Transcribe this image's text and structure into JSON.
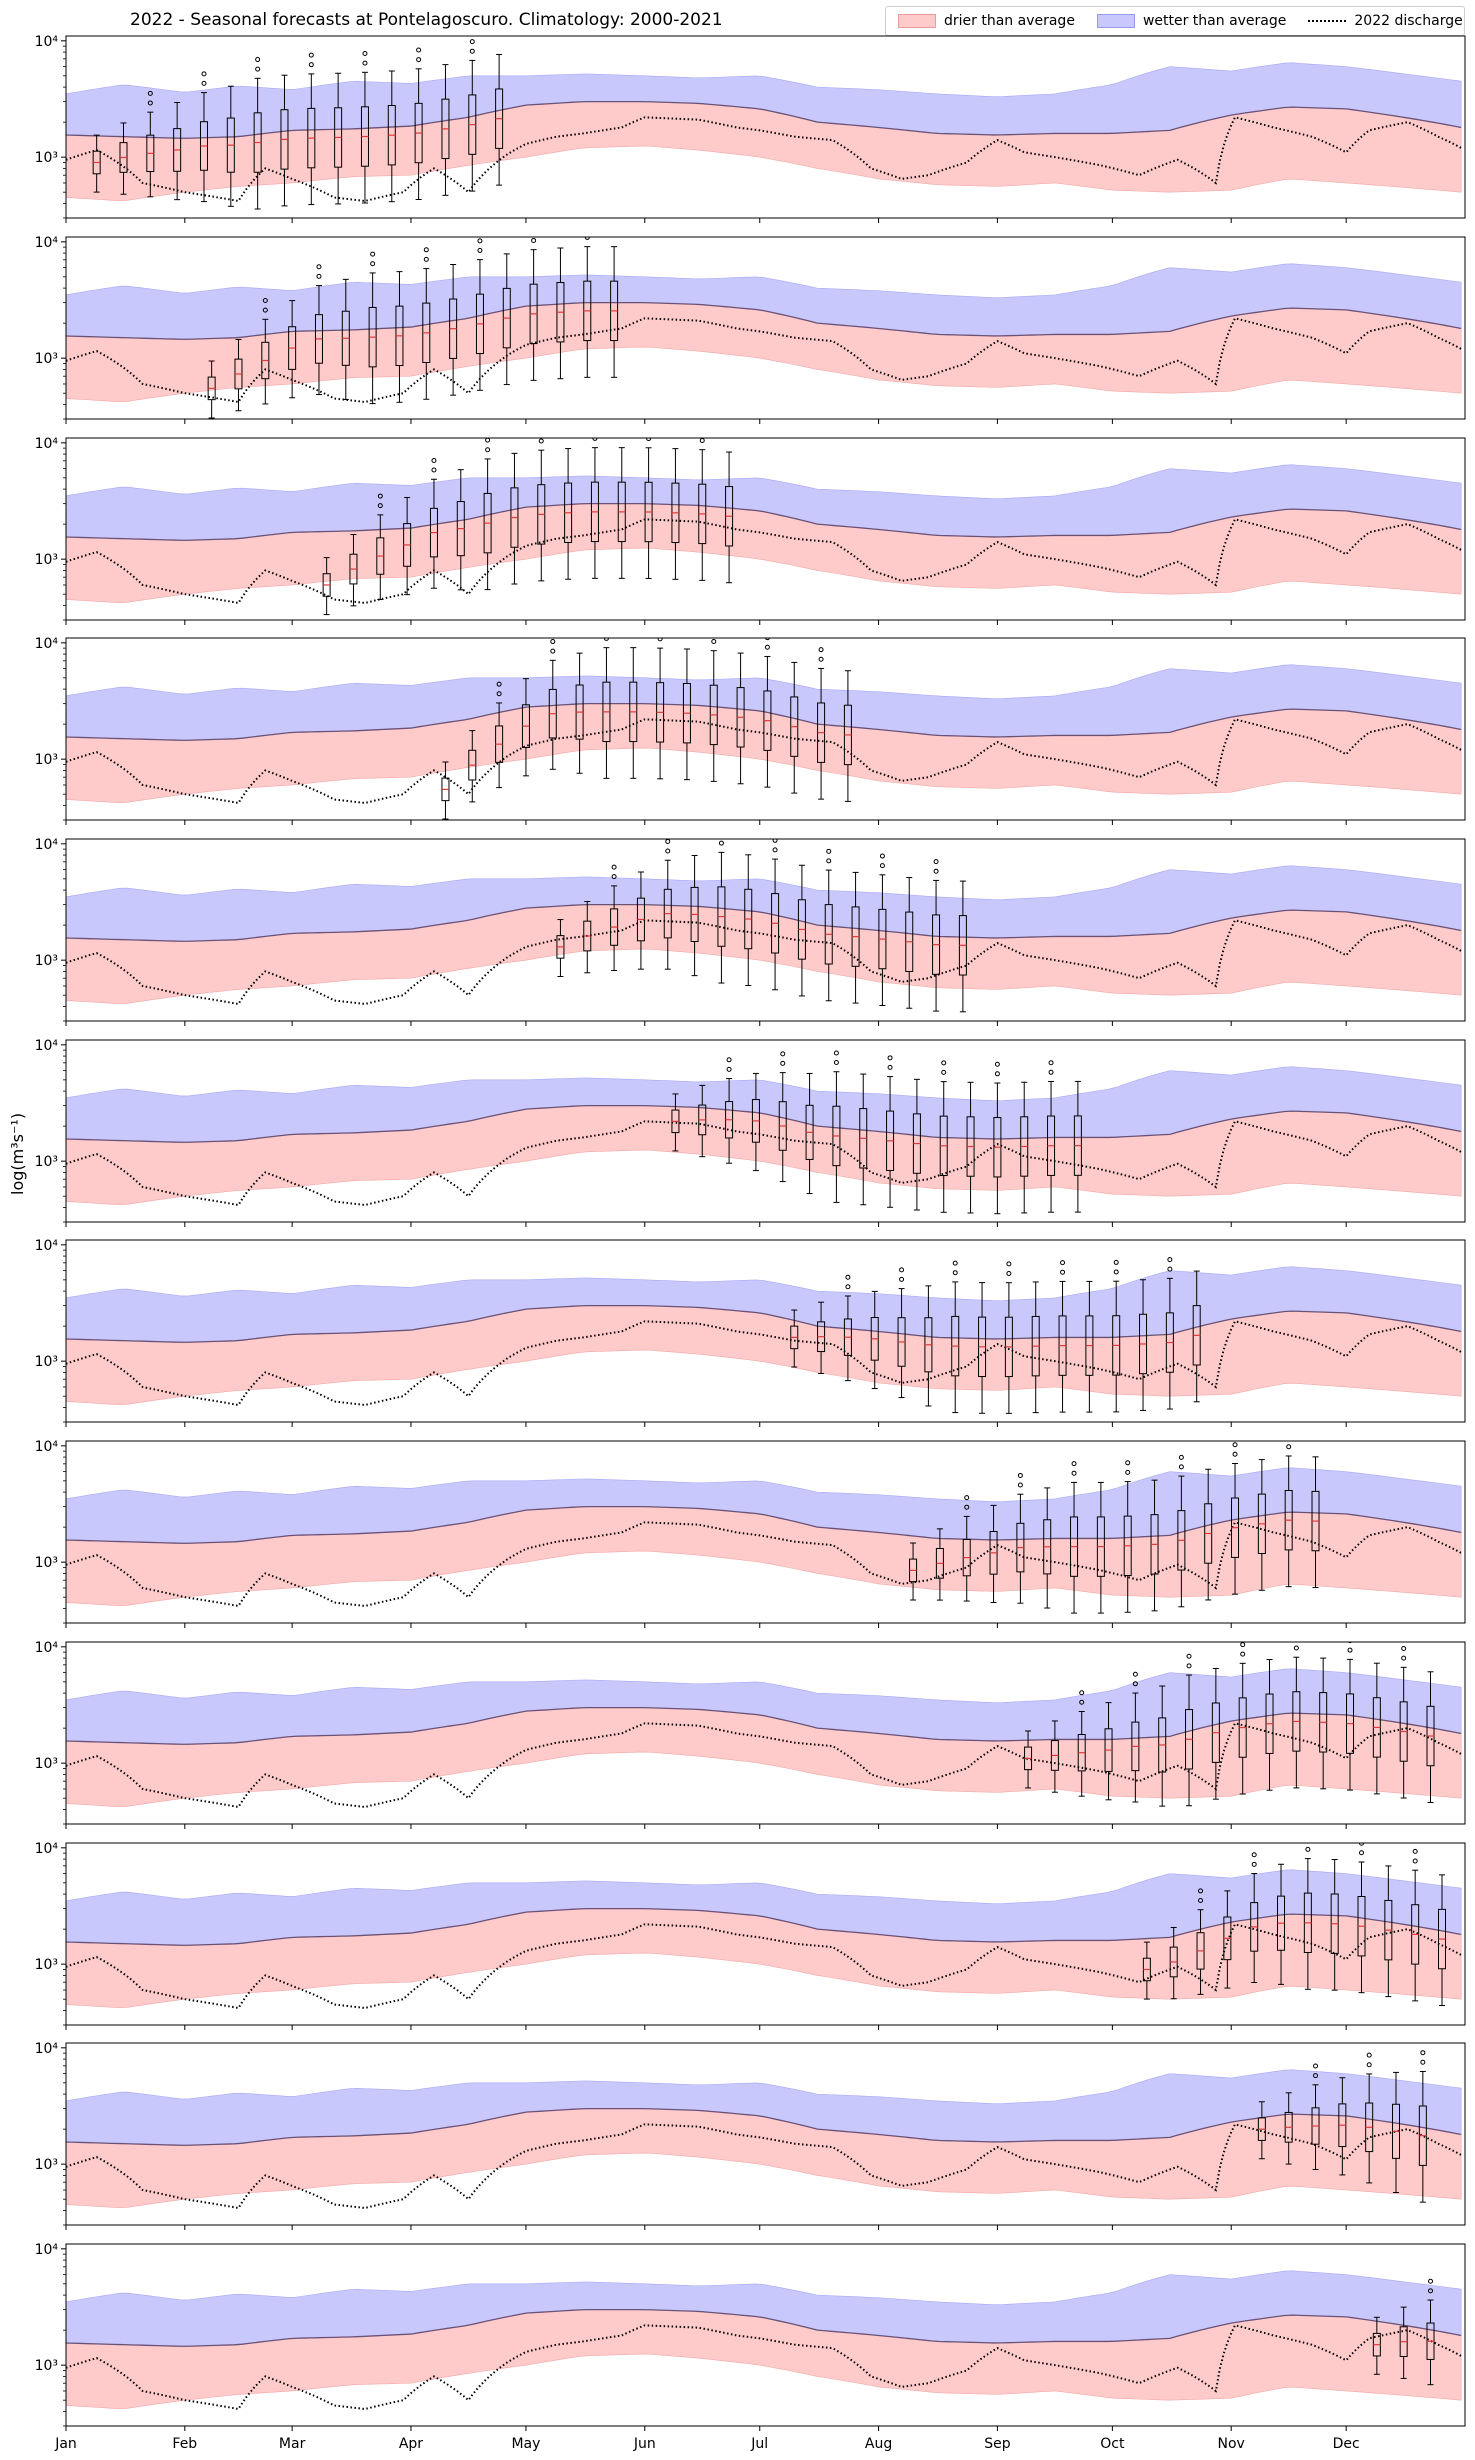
{
  "title": "2022 - Seasonal forecasts at Pontelagoscuro. Climatology: 2000-2021",
  "ylabel": "log(m³s⁻¹)",
  "legend": {
    "drier": "drier than average",
    "wetter": "wetter than average",
    "discharge": "2022 discharge"
  },
  "colors": {
    "drier_fill": "#ffcaca",
    "wetter_fill": "#c8c8fd",
    "median_line": "#6a5277",
    "discharge": "#000000",
    "forecast_median": "#e03a3a"
  },
  "chart_data": {
    "type": "area",
    "scale": "log",
    "ylim": [
      300,
      11000
    ],
    "yticks": [
      1000,
      10000
    ],
    "ytick_labels": [
      "10³",
      "10⁴"
    ],
    "month_labels": [
      "Jan",
      "Feb",
      "Mar",
      "Apr",
      "May",
      "Jun",
      "Jul",
      "Aug",
      "Sep",
      "Oct",
      "Nov",
      "Dec"
    ],
    "month_start_days": [
      0,
      31,
      59,
      90,
      120,
      151,
      181,
      212,
      243,
      273,
      304,
      334
    ],
    "xlim": [
      0,
      365
    ],
    "climatology": {
      "days": [
        0,
        15,
        31,
        45,
        59,
        75,
        90,
        105,
        120,
        135,
        151,
        165,
        181,
        196,
        212,
        227,
        243,
        258,
        273,
        288,
        304,
        319,
        334,
        349,
        364
      ],
      "p10": [
        450,
        420,
        500,
        560,
        600,
        680,
        700,
        850,
        1000,
        1200,
        1250,
        1150,
        1000,
        800,
        650,
        580,
        560,
        600,
        520,
        500,
        520,
        650,
        600,
        550,
        500
      ],
      "median": [
        1550,
        1500,
        1450,
        1500,
        1700,
        1750,
        1850,
        2200,
        2800,
        3000,
        3000,
        2900,
        2600,
        2000,
        1800,
        1600,
        1550,
        1600,
        1600,
        1700,
        2300,
        2700,
        2600,
        2200,
        1800
      ],
      "p90": [
        3500,
        4200,
        3600,
        4100,
        3800,
        4500,
        4300,
        5000,
        5000,
        5200,
        5000,
        4800,
        5000,
        4000,
        3800,
        3500,
        3300,
        3500,
        4200,
        6000,
        5500,
        6500,
        6000,
        5200,
        4500
      ]
    },
    "discharge_2022": {
      "days": [
        0,
        8,
        20,
        31,
        45,
        52,
        59,
        70,
        78,
        88,
        96,
        105,
        115,
        120,
        128,
        135,
        145,
        151,
        165,
        175,
        181,
        190,
        200,
        210,
        218,
        225,
        235,
        243,
        250,
        258,
        270,
        280,
        290,
        300,
        305,
        315,
        325,
        334,
        340,
        350,
        358,
        364
      ],
      "values": [
        950,
        1150,
        600,
        500,
        420,
        800,
        650,
        450,
        420,
        500,
        800,
        500,
        1050,
        1300,
        1500,
        1600,
        1800,
        2200,
        2100,
        1800,
        1700,
        1500,
        1400,
        800,
        650,
        700,
        900,
        1400,
        1100,
        1000,
        850,
        700,
        950,
        600,
        2200,
        1800,
        1500,
        1100,
        1700,
        2000,
        1500,
        1200
      ]
    },
    "forecast_panels": [
      {
        "start_day": 8,
        "n": 16,
        "median_start": 900
      },
      {
        "start_day": 38,
        "n": 16,
        "median_start": 550
      },
      {
        "start_day": 68,
        "n": 16,
        "median_start": 600
      },
      {
        "start_day": 99,
        "n": 16,
        "median_start": 550
      },
      {
        "start_day": 129,
        "n": 16,
        "median_start": 1300
      },
      {
        "start_day": 159,
        "n": 16,
        "median_start": 2200
      },
      {
        "start_day": 190,
        "n": 16,
        "median_start": 1600
      },
      {
        "start_day": 221,
        "n": 16,
        "median_start": 850
      },
      {
        "start_day": 251,
        "n": 16,
        "median_start": 1100
      },
      {
        "start_day": 282,
        "n": 16,
        "median_start": 900
      },
      {
        "start_day": 312,
        "n": 7,
        "median_start": 2000
      },
      {
        "start_day": 342,
        "n": 3,
        "median_start": 1500
      }
    ]
  }
}
